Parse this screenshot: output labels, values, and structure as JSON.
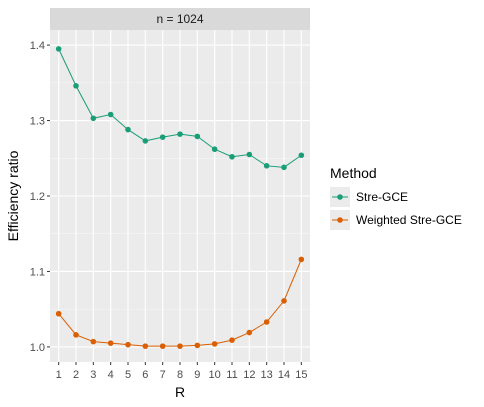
{
  "chart_data": {
    "type": "line",
    "facet_label": "n = 1024",
    "xlabel": "R",
    "ylabel": "Efficiency ratio",
    "x": [
      1,
      2,
      3,
      4,
      5,
      6,
      7,
      8,
      9,
      10,
      11,
      12,
      13,
      14,
      15
    ],
    "xlim": [
      0.5,
      15.5
    ],
    "ylim": [
      0.98,
      1.42
    ],
    "y_ticks": [
      1.0,
      1.1,
      1.2,
      1.3,
      1.4
    ],
    "y_tick_labels": [
      "1.0",
      "1.1",
      "1.2",
      "1.3",
      "1.4"
    ],
    "grid": true,
    "legend_title": "Method",
    "legend_position": "right",
    "series": [
      {
        "name": "Stre-GCE",
        "color": "#1b9e77",
        "values": [
          1.395,
          1.346,
          1.303,
          1.308,
          1.288,
          1.273,
          1.278,
          1.282,
          1.279,
          1.262,
          1.252,
          1.255,
          1.24,
          1.238,
          1.254
        ]
      },
      {
        "name": "Weighted Stre-GCE",
        "color": "#d95f02",
        "values": [
          1.044,
          1.016,
          1.007,
          1.005,
          1.003,
          1.001,
          1.001,
          1.001,
          1.002,
          1.004,
          1.009,
          1.019,
          1.033,
          1.061,
          1.116
        ]
      }
    ]
  }
}
